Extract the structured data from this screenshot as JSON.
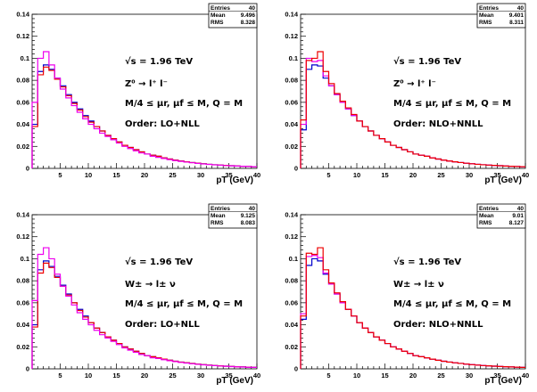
{
  "colors": {
    "lo": "#0000cc",
    "nlo": "#ee0000",
    "resum": "#ee00ee"
  },
  "chart_data": [
    {
      "type": "line",
      "xlabel": "pT (GeV)",
      "xlim": [
        0,
        40
      ],
      "ylim": [
        0,
        0.14
      ],
      "x_ticks": [
        5,
        10,
        15,
        20,
        25,
        30,
        35,
        40
      ],
      "y_ticks": [
        0,
        0.02,
        0.04,
        0.06,
        0.08,
        0.1,
        0.12,
        0.14
      ],
      "x_tick_labels": [
        "5",
        "10",
        "15",
        "20",
        "25",
        "30",
        "35",
        "40"
      ],
      "y_tick_labels": [
        "0",
        "0.02",
        "0.04",
        "0.06",
        "0.08",
        "0.1",
        "0.12",
        "0.14"
      ],
      "stats": {
        "entries_label": "Entries",
        "entries": "40",
        "mean_label": "Mean",
        "mean": "9.496",
        "rms_label": "RMS",
        "rms": "8.328"
      },
      "annotations": [
        "√s = 1.96 TeV",
        "Z⁰ → l⁺ l⁻",
        "M/4 ≤ μr, μf ≤ M, Q = M",
        "Order: LO+NLL"
      ],
      "bin_edges": [
        0,
        1,
        2,
        3,
        4,
        5,
        6,
        7,
        8,
        9,
        10,
        11,
        12,
        13,
        14,
        15,
        16,
        17,
        18,
        19,
        20,
        21,
        22,
        23,
        24,
        25,
        26,
        27,
        28,
        29,
        30,
        31,
        32,
        33,
        34,
        35,
        36,
        37,
        38,
        39,
        40
      ],
      "series": [
        {
          "color_key": "lo",
          "values": [
            0.04,
            0.088,
            0.094,
            0.09,
            0.082,
            0.075,
            0.067,
            0.06,
            0.054,
            0.048,
            0.043,
            0.038,
            0.034,
            0.03,
            0.027,
            0.024,
            0.021,
            0.019,
            0.017,
            0.015,
            0.013,
            0.012,
            0.011,
            0.0095,
            0.0085,
            0.0075,
            0.0067,
            0.006,
            0.0053,
            0.0047,
            0.0042,
            0.0037,
            0.0033,
            0.003,
            0.0027,
            0.0024,
            0.0021,
            0.0019,
            0.0017,
            0.0015
          ]
        },
        {
          "color_key": "nlo",
          "values": [
            0.038,
            0.085,
            0.092,
            0.089,
            0.081,
            0.074,
            0.066,
            0.059,
            0.053,
            0.047,
            0.042,
            0.038,
            0.034,
            0.03,
            0.027,
            0.024,
            0.021,
            0.019,
            0.017,
            0.015,
            0.013,
            0.012,
            0.011,
            0.0095,
            0.0085,
            0.0075,
            0.0067,
            0.006,
            0.0053,
            0.0047,
            0.0042,
            0.0037,
            0.0033,
            0.003,
            0.0027,
            0.0024,
            0.0021,
            0.0019,
            0.0017,
            0.0015
          ]
        },
        {
          "color_key": "resum",
          "values": [
            0.06,
            0.1,
            0.106,
            0.094,
            0.082,
            0.072,
            0.064,
            0.057,
            0.051,
            0.045,
            0.04,
            0.036,
            0.032,
            0.029,
            0.026,
            0.023,
            0.02,
            0.018,
            0.016,
            0.014,
            0.013,
            0.011,
            0.01,
            0.009,
            0.008,
            0.0071,
            0.0064,
            0.0057,
            0.0051,
            0.0045,
            0.004,
            0.0036,
            0.0032,
            0.0029,
            0.0026,
            0.0023,
            0.0021,
            0.0019,
            0.0017,
            0.0015
          ]
        }
      ]
    },
    {
      "type": "line",
      "xlabel": "pT (GeV)",
      "xlim": [
        0,
        40
      ],
      "ylim": [
        0,
        0.14
      ],
      "x_ticks": [
        5,
        10,
        15,
        20,
        25,
        30,
        35,
        40
      ],
      "y_ticks": [
        0,
        0.02,
        0.04,
        0.06,
        0.08,
        0.1,
        0.12,
        0.14
      ],
      "x_tick_labels": [
        "5",
        "10",
        "15",
        "20",
        "25",
        "30",
        "35",
        "40"
      ],
      "y_tick_labels": [
        "0",
        "0.02",
        "0.04",
        "0.06",
        "0.08",
        "0.1",
        "0.12",
        "0.14"
      ],
      "stats": {
        "entries_label": "Entries",
        "entries": "40",
        "mean_label": "Mean",
        "mean": "9.401",
        "rms_label": "RMS",
        "rms": "8.311"
      },
      "annotations": [
        "√s = 1.96 TeV",
        "Z⁰ → l⁺ l⁻",
        "M/4 ≤ μr, μf ≤ M, Q = M",
        "Order: NLO+NNLL"
      ],
      "bin_edges": [
        0,
        1,
        2,
        3,
        4,
        5,
        6,
        7,
        8,
        9,
        10,
        11,
        12,
        13,
        14,
        15,
        16,
        17,
        18,
        19,
        20,
        21,
        22,
        23,
        24,
        25,
        26,
        27,
        28,
        29,
        30,
        31,
        32,
        33,
        34,
        35,
        36,
        37,
        38,
        39,
        40
      ],
      "series": [
        {
          "color_key": "lo",
          "values": [
            0.035,
            0.09,
            0.094,
            0.093,
            0.082,
            0.075,
            0.067,
            0.06,
            0.054,
            0.048,
            0.043,
            0.038,
            0.034,
            0.03,
            0.027,
            0.024,
            0.021,
            0.019,
            0.017,
            0.015,
            0.013,
            0.012,
            0.011,
            0.0095,
            0.0085,
            0.0075,
            0.0067,
            0.006,
            0.0053,
            0.0047,
            0.0042,
            0.0037,
            0.0033,
            0.003,
            0.0027,
            0.0024,
            0.0021,
            0.0019,
            0.0017,
            0.0015
          ]
        },
        {
          "color_key": "resum",
          "values": [
            0.04,
            0.1,
            0.097,
            0.098,
            0.084,
            0.075,
            0.067,
            0.06,
            0.054,
            0.048,
            0.043,
            0.038,
            0.034,
            0.03,
            0.027,
            0.024,
            0.021,
            0.019,
            0.017,
            0.015,
            0.013,
            0.012,
            0.011,
            0.0095,
            0.0085,
            0.0075,
            0.0067,
            0.006,
            0.0053,
            0.0047,
            0.0042,
            0.0037,
            0.0033,
            0.003,
            0.0027,
            0.0024,
            0.0021,
            0.0019,
            0.0017,
            0.0015
          ]
        },
        {
          "color_key": "nlo",
          "values": [
            0.044,
            0.098,
            0.1,
            0.106,
            0.088,
            0.077,
            0.068,
            0.061,
            0.055,
            0.049,
            0.043,
            0.038,
            0.034,
            0.03,
            0.027,
            0.024,
            0.021,
            0.019,
            0.017,
            0.015,
            0.013,
            0.012,
            0.011,
            0.0095,
            0.0085,
            0.0075,
            0.0067,
            0.006,
            0.0053,
            0.0047,
            0.0042,
            0.0037,
            0.0033,
            0.003,
            0.0027,
            0.0024,
            0.0021,
            0.0019,
            0.0017,
            0.0015
          ]
        }
      ]
    },
    {
      "type": "line",
      "xlabel": "pT (GeV)",
      "xlim": [
        0,
        40
      ],
      "ylim": [
        0,
        0.14
      ],
      "x_ticks": [
        5,
        10,
        15,
        20,
        25,
        30,
        35,
        40
      ],
      "y_ticks": [
        0,
        0.02,
        0.04,
        0.06,
        0.08,
        0.1,
        0.12,
        0.14
      ],
      "x_tick_labels": [
        "5",
        "10",
        "15",
        "20",
        "25",
        "30",
        "35",
        "40"
      ],
      "y_tick_labels": [
        "0",
        "0.02",
        "0.04",
        "0.06",
        "0.08",
        "0.1",
        "0.12",
        "0.14"
      ],
      "stats": {
        "entries_label": "Entries",
        "entries": "40",
        "mean_label": "Mean",
        "mean": "9.125",
        "rms_label": "RMS",
        "rms": "8.083"
      },
      "annotations": [
        "√s = 1.96 TeV",
        "W± → l± ν",
        "M/4 ≤ μr, μf ≤ M, Q = M",
        "Order: LO+NLL"
      ],
      "bin_edges": [
        0,
        1,
        2,
        3,
        4,
        5,
        6,
        7,
        8,
        9,
        10,
        11,
        12,
        13,
        14,
        15,
        16,
        17,
        18,
        19,
        20,
        21,
        22,
        23,
        24,
        25,
        26,
        27,
        28,
        29,
        30,
        31,
        32,
        33,
        34,
        35,
        36,
        37,
        38,
        39,
        40
      ],
      "series": [
        {
          "color_key": "lo",
          "values": [
            0.04,
            0.09,
            0.098,
            0.093,
            0.084,
            0.076,
            0.068,
            0.06,
            0.054,
            0.048,
            0.042,
            0.037,
            0.033,
            0.029,
            0.026,
            0.023,
            0.02,
            0.018,
            0.016,
            0.014,
            0.012,
            0.011,
            0.01,
            0.0088,
            0.0078,
            0.0069,
            0.0061,
            0.0055,
            0.0049,
            0.0043,
            0.0038,
            0.0034,
            0.003,
            0.0027,
            0.0024,
            0.0021,
            0.0019,
            0.0017,
            0.0015,
            0.0013
          ]
        },
        {
          "color_key": "nlo",
          "values": [
            0.038,
            0.087,
            0.096,
            0.092,
            0.083,
            0.075,
            0.067,
            0.06,
            0.053,
            0.047,
            0.042,
            0.037,
            0.033,
            0.029,
            0.026,
            0.023,
            0.02,
            0.018,
            0.016,
            0.014,
            0.012,
            0.011,
            0.01,
            0.0088,
            0.0078,
            0.0069,
            0.0061,
            0.0055,
            0.0049,
            0.0043,
            0.0038,
            0.0034,
            0.003,
            0.0027,
            0.0024,
            0.0021,
            0.0019,
            0.0017,
            0.0015,
            0.0013
          ]
        },
        {
          "color_key": "resum",
          "values": [
            0.062,
            0.104,
            0.11,
            0.1,
            0.086,
            0.075,
            0.066,
            0.058,
            0.051,
            0.045,
            0.04,
            0.035,
            0.031,
            0.028,
            0.025,
            0.022,
            0.019,
            0.017,
            0.015,
            0.013,
            0.012,
            0.01,
            0.0094,
            0.0083,
            0.0074,
            0.0066,
            0.0058,
            0.0052,
            0.0046,
            0.0041,
            0.0036,
            0.0032,
            0.0029,
            0.0026,
            0.0023,
            0.002,
            0.0018,
            0.0016,
            0.0014,
            0.0013
          ]
        }
      ]
    },
    {
      "type": "line",
      "xlabel": "pT (GeV)",
      "xlim": [
        0,
        40
      ],
      "ylim": [
        0,
        0.14
      ],
      "x_ticks": [
        5,
        10,
        15,
        20,
        25,
        30,
        35,
        40
      ],
      "y_ticks": [
        0,
        0.02,
        0.04,
        0.06,
        0.08,
        0.1,
        0.12,
        0.14
      ],
      "x_tick_labels": [
        "5",
        "10",
        "15",
        "20",
        "25",
        "30",
        "35",
        "40"
      ],
      "y_tick_labels": [
        "0",
        "0.02",
        "0.04",
        "0.06",
        "0.08",
        "0.1",
        "0.12",
        "0.14"
      ],
      "stats": {
        "entries_label": "Entries",
        "entries": "40",
        "mean_label": "Mean",
        "mean": "9.01",
        "rms_label": "RMS",
        "rms": "8.127"
      },
      "annotations": [
        "√s = 1.96 TeV",
        "W± → l± ν",
        "M/4 ≤ μr, μf ≤ M, Q = M",
        "Order: NLO+NNLL"
      ],
      "bin_edges": [
        0,
        1,
        2,
        3,
        4,
        5,
        6,
        7,
        8,
        9,
        10,
        11,
        12,
        13,
        14,
        15,
        16,
        17,
        18,
        19,
        20,
        21,
        22,
        23,
        24,
        25,
        26,
        27,
        28,
        29,
        30,
        31,
        32,
        33,
        34,
        35,
        36,
        37,
        38,
        39,
        40
      ],
      "series": [
        {
          "color_key": "lo",
          "values": [
            0.045,
            0.094,
            0.1,
            0.098,
            0.086,
            0.077,
            0.068,
            0.06,
            0.054,
            0.048,
            0.042,
            0.037,
            0.033,
            0.029,
            0.026,
            0.023,
            0.02,
            0.018,
            0.016,
            0.014,
            0.012,
            0.011,
            0.01,
            0.0088,
            0.0078,
            0.0069,
            0.0061,
            0.0055,
            0.0049,
            0.0043,
            0.0038,
            0.0034,
            0.003,
            0.0027,
            0.0024,
            0.0021,
            0.0019,
            0.0017,
            0.0015,
            0.0013
          ]
        },
        {
          "color_key": "resum",
          "values": [
            0.05,
            0.102,
            0.103,
            0.101,
            0.087,
            0.077,
            0.068,
            0.06,
            0.054,
            0.048,
            0.042,
            0.037,
            0.033,
            0.029,
            0.026,
            0.023,
            0.02,
            0.018,
            0.016,
            0.014,
            0.012,
            0.011,
            0.01,
            0.0088,
            0.0078,
            0.0069,
            0.0061,
            0.0055,
            0.0049,
            0.0043,
            0.0038,
            0.0034,
            0.003,
            0.0027,
            0.0024,
            0.0021,
            0.0019,
            0.0017,
            0.0015,
            0.0013
          ]
        },
        {
          "color_key": "nlo",
          "values": [
            0.048,
            0.105,
            0.104,
            0.11,
            0.09,
            0.078,
            0.069,
            0.061,
            0.054,
            0.048,
            0.042,
            0.037,
            0.033,
            0.029,
            0.026,
            0.023,
            0.02,
            0.018,
            0.016,
            0.014,
            0.012,
            0.011,
            0.01,
            0.0088,
            0.0078,
            0.0069,
            0.0061,
            0.0055,
            0.0049,
            0.0043,
            0.0038,
            0.0034,
            0.003,
            0.0027,
            0.0024,
            0.0021,
            0.0019,
            0.0017,
            0.0015,
            0.0013
          ]
        }
      ]
    }
  ]
}
